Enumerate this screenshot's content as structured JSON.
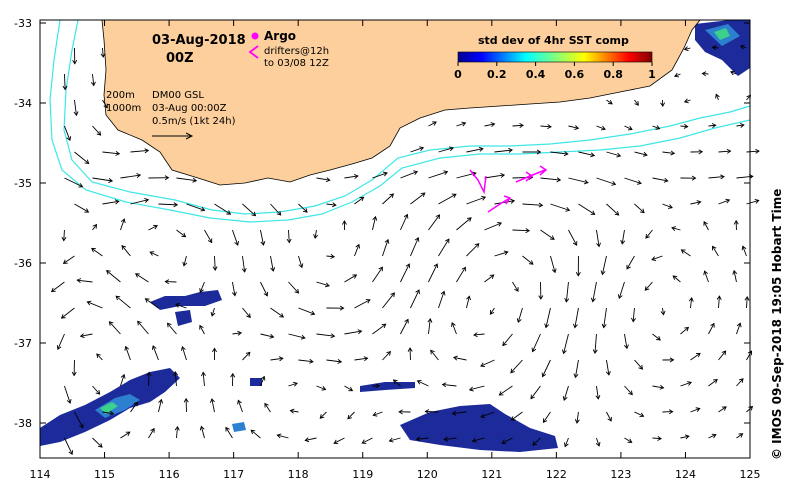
{
  "header": {
    "date": "03-Aug-2018",
    "hour": "00Z",
    "argo_label": "Argo",
    "drifters_line1": "drifters@12h",
    "drifters_line2": "to 03/08 12Z"
  },
  "legend": {
    "contour1": "200m",
    "contour2": "1000m",
    "product": "DM00 GSL",
    "timestamp": "03-Aug 00:00Z",
    "scale": "0.5m/s (1kt 24h)"
  },
  "colorbar": {
    "title": "std dev of 4hr SST comp",
    "ticks": [
      "0",
      "0.2",
      "0.4",
      "0.6",
      "0.8",
      "1"
    ]
  },
  "credit": "© IMOS 09-Sep-2018 19:05 Hobart Time",
  "axes": {
    "lon_ticks": [
      "114",
      "115",
      "116",
      "117",
      "118",
      "119",
      "120",
      "121",
      "122",
      "123",
      "124",
      "125"
    ],
    "lat_ticks": [
      "-33",
      "-34",
      "-35",
      "-36",
      "-37",
      "-38"
    ]
  },
  "colors": {
    "land": "#fccf9c",
    "isobath": "#3fe6e6",
    "drifter": "#ff00ff",
    "sst_low": "#1c2a9a"
  }
}
